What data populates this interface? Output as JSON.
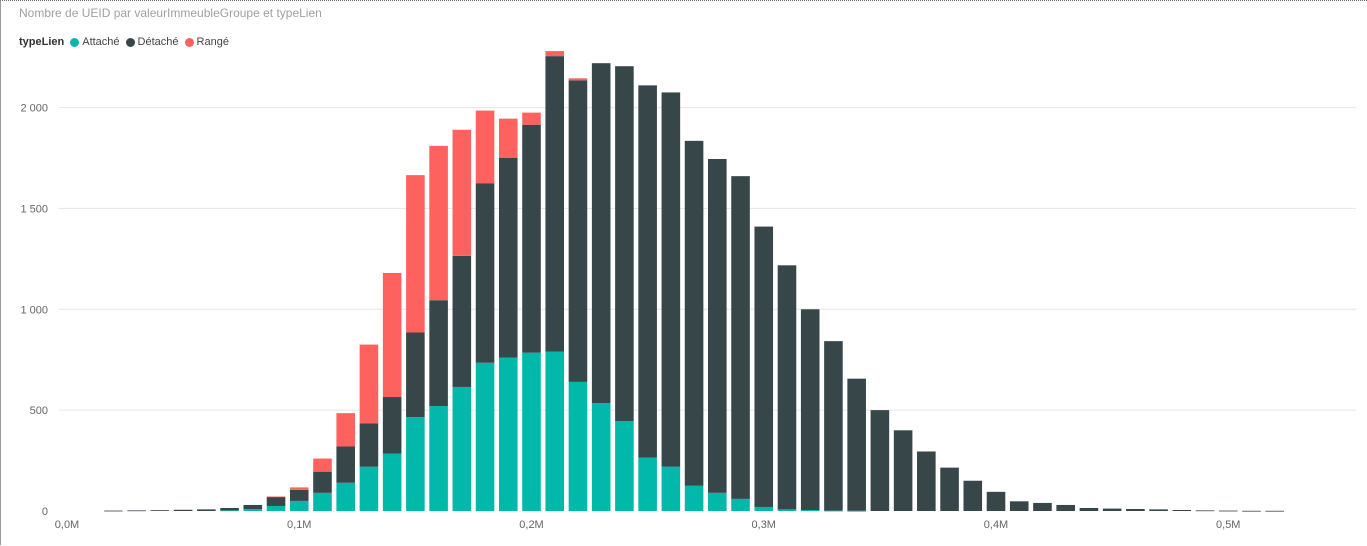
{
  "title": "Nombre de UEID par valeurImmeubleGroupe et typeLien",
  "legend": {
    "title": "typeLien",
    "items": [
      {
        "label": "Attaché",
        "color": "#01B8AA"
      },
      {
        "label": "Détaché",
        "color": "#374649"
      },
      {
        "label": "Rangé",
        "color": "#FD625E"
      }
    ]
  },
  "chart_data": {
    "type": "bar",
    "stacked": true,
    "title": "Nombre de UEID par valeurImmeubleGroupe et typeLien",
    "xlabel": "",
    "ylabel": "",
    "x_axis": {
      "min": 0,
      "max": 555000,
      "ticks": [
        0,
        100000,
        200000,
        300000,
        400000,
        500000
      ],
      "tick_labels": [
        "0,0M",
        "0,1M",
        "0,2M",
        "0,3M",
        "0,4M",
        "0,5M"
      ]
    },
    "y_axis": {
      "min": 0,
      "max": 2330,
      "ticks": [
        0,
        500,
        1000,
        1500,
        2000
      ],
      "tick_labels": [
        "0",
        "500",
        "1 000",
        "1 500",
        "2 000"
      ]
    },
    "grid": true,
    "legend_position": "top-left",
    "bin_width": 10000,
    "x": [
      20000,
      30000,
      40000,
      50000,
      60000,
      70000,
      80000,
      90000,
      100000,
      110000,
      120000,
      130000,
      140000,
      150000,
      160000,
      170000,
      180000,
      190000,
      200000,
      210000,
      220000,
      230000,
      240000,
      250000,
      260000,
      270000,
      280000,
      290000,
      300000,
      310000,
      320000,
      330000,
      340000,
      350000,
      360000,
      370000,
      380000,
      390000,
      400000,
      410000,
      420000,
      430000,
      440000,
      450000,
      460000,
      470000,
      480000,
      490000,
      500000,
      510000,
      520000
    ],
    "series": [
      {
        "name": "Attaché",
        "values": [
          0,
          0,
          0,
          0,
          0,
          3,
          10,
          25,
          50,
          90,
          140,
          220,
          285,
          465,
          520,
          615,
          735,
          760,
          785,
          790,
          640,
          535,
          445,
          265,
          220,
          125,
          90,
          60,
          20,
          8,
          5,
          2,
          1,
          0,
          0,
          0,
          0,
          0,
          0,
          0,
          0,
          0,
          0,
          0,
          0,
          0,
          0,
          0,
          0,
          0,
          0
        ]
      },
      {
        "name": "Détaché",
        "values": [
          2,
          3,
          4,
          6,
          8,
          12,
          20,
          45,
          55,
          105,
          180,
          215,
          280,
          420,
          525,
          650,
          890,
          990,
          1130,
          1465,
          1495,
          1685,
          1760,
          1845,
          1855,
          1710,
          1655,
          1600,
          1390,
          1210,
          995,
          840,
          655,
          500,
          400,
          295,
          215,
          150,
          95,
          48,
          40,
          30,
          15,
          12,
          10,
          8,
          5,
          3,
          2,
          1,
          1
        ]
      },
      {
        "name": "Rangé",
        "values": [
          0,
          0,
          0,
          0,
          0,
          0,
          0,
          2,
          12,
          65,
          165,
          390,
          615,
          780,
          765,
          625,
          360,
          195,
          60,
          25,
          10,
          0,
          0,
          0,
          0,
          0,
          0,
          0,
          0,
          0,
          0,
          0,
          0,
          0,
          0,
          0,
          0,
          0,
          0,
          0,
          0,
          0,
          0,
          0,
          0,
          0,
          0,
          0,
          0,
          0,
          0
        ]
      }
    ]
  }
}
